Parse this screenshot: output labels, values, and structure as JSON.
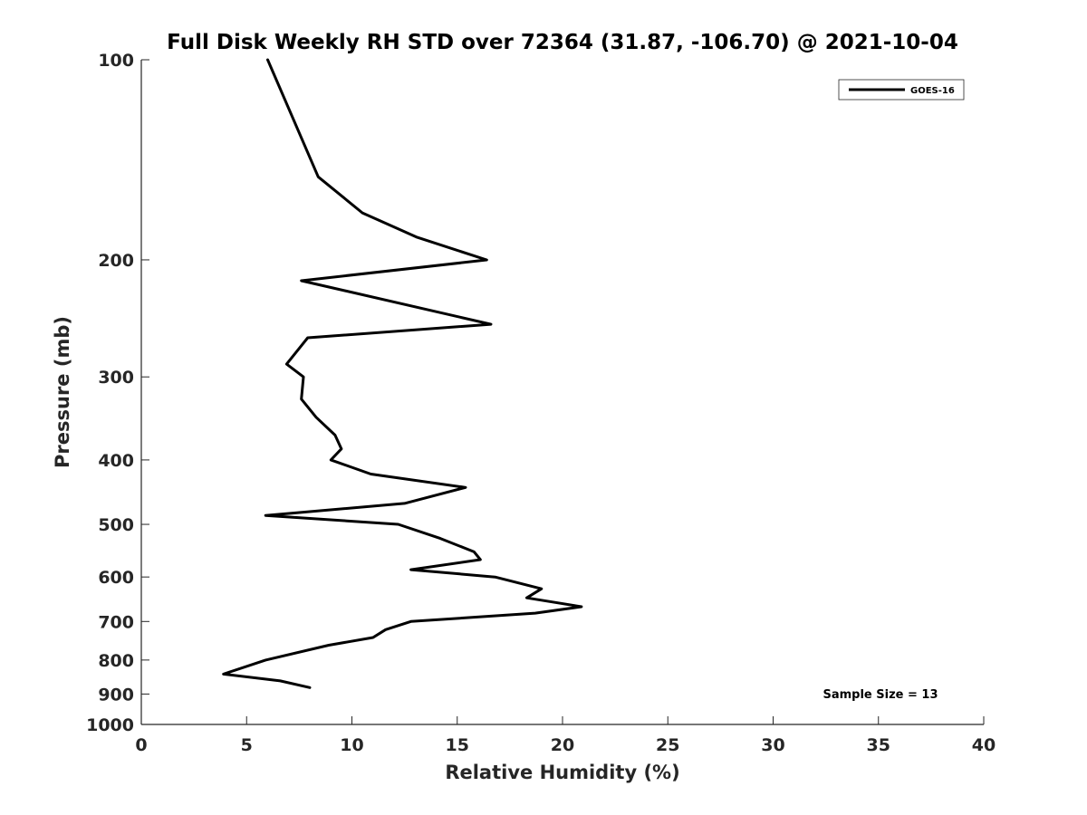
{
  "chart_data": {
    "type": "line",
    "title": "Full Disk Weekly RH STD over 72364 (31.87, -106.70) @ 2021-10-04",
    "xlabel": "Relative Humidity (%)",
    "ylabel": "Pressure (mb)",
    "xlim": [
      0,
      40
    ],
    "ylim": [
      1000,
      100
    ],
    "yscale": "log",
    "y_reversed": true,
    "grid": false,
    "legend_position": "top-right",
    "x_ticks": [
      0,
      5,
      10,
      15,
      20,
      25,
      30,
      35,
      40
    ],
    "y_ticks": [
      100,
      200,
      300,
      400,
      500,
      600,
      700,
      800,
      900,
      1000
    ],
    "series": [
      {
        "name": "GOES-16",
        "color": "#000000",
        "points": [
          {
            "x": 6.0,
            "y": 100
          },
          {
            "x": 8.4,
            "y": 150
          },
          {
            "x": 10.5,
            "y": 170
          },
          {
            "x": 13.1,
            "y": 185
          },
          {
            "x": 16.4,
            "y": 200
          },
          {
            "x": 7.6,
            "y": 215
          },
          {
            "x": 16.6,
            "y": 250
          },
          {
            "x": 7.9,
            "y": 262
          },
          {
            "x": 6.9,
            "y": 287
          },
          {
            "x": 7.7,
            "y": 300
          },
          {
            "x": 7.6,
            "y": 324
          },
          {
            "x": 8.3,
            "y": 345
          },
          {
            "x": 9.2,
            "y": 367
          },
          {
            "x": 9.5,
            "y": 385
          },
          {
            "x": 9.0,
            "y": 400
          },
          {
            "x": 10.9,
            "y": 420
          },
          {
            "x": 15.4,
            "y": 440
          },
          {
            "x": 12.5,
            "y": 465
          },
          {
            "x": 5.9,
            "y": 485
          },
          {
            "x": 12.2,
            "y": 500
          },
          {
            "x": 14.2,
            "y": 525
          },
          {
            "x": 15.8,
            "y": 550
          },
          {
            "x": 16.1,
            "y": 565
          },
          {
            "x": 12.8,
            "y": 585
          },
          {
            "x": 16.8,
            "y": 600
          },
          {
            "x": 19.0,
            "y": 625
          },
          {
            "x": 18.3,
            "y": 645
          },
          {
            "x": 20.9,
            "y": 665
          },
          {
            "x": 18.7,
            "y": 680
          },
          {
            "x": 12.8,
            "y": 700
          },
          {
            "x": 11.6,
            "y": 720
          },
          {
            "x": 11.0,
            "y": 740
          },
          {
            "x": 8.9,
            "y": 760
          },
          {
            "x": 5.9,
            "y": 800
          },
          {
            "x": 3.9,
            "y": 840
          },
          {
            "x": 6.6,
            "y": 860
          },
          {
            "x": 8.0,
            "y": 880
          }
        ]
      }
    ],
    "annotations": [
      {
        "text": "Sample Size = 13",
        "position": "bottom-right"
      }
    ]
  }
}
